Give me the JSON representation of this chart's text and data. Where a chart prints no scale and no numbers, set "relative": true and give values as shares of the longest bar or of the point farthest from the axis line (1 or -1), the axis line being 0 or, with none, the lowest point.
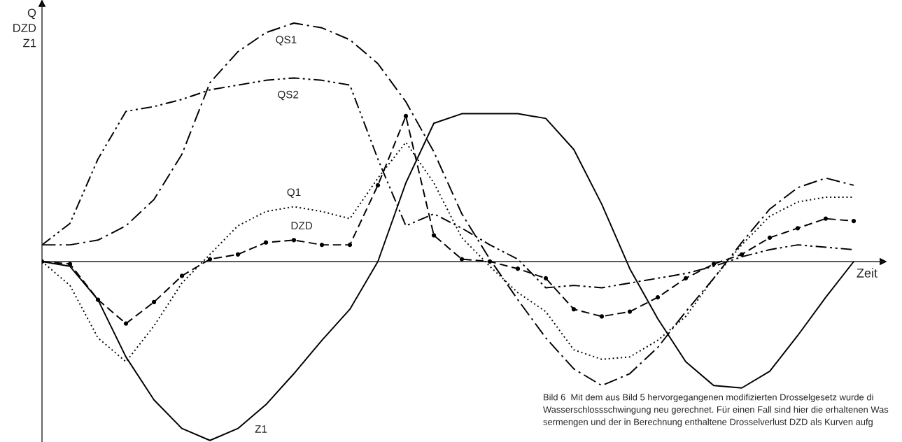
{
  "chart_data": {
    "type": "line",
    "relative": true,
    "ylabel": "Q\nDZD\nZ1",
    "xlabel": "Zeit",
    "categories": [
      null,
      null,
      null,
      null,
      null,
      null,
      null,
      null,
      null,
      null,
      null,
      null,
      null,
      null,
      null,
      null,
      null,
      null,
      null,
      null,
      null,
      null,
      null,
      null,
      null,
      null,
      null,
      null,
      null,
      null
    ],
    "series": [
      {
        "name": "QS1",
        "color": "#000000",
        "line_style": "dashdot",
        "values": [
          0.07,
          0.07,
          0.09,
          0.15,
          0.26,
          0.45,
          0.75,
          0.88,
          0.96,
          1.0,
          0.98,
          0.93,
          0.83,
          0.67,
          0.46,
          0.2,
          0.01,
          -0.16,
          -0.32,
          -0.45,
          -0.52,
          -0.47,
          -0.36,
          -0.21,
          -0.07,
          0.08,
          0.22,
          0.31,
          0.35,
          0.32
        ]
      },
      {
        "name": "QS2",
        "color": "#000000",
        "line_style": "dashdotdot",
        "values": [
          0.07,
          0.16,
          0.43,
          0.63,
          0.65,
          0.68,
          0.72,
          0.74,
          0.76,
          0.77,
          0.76,
          0.74,
          0.43,
          0.15,
          0.2,
          0.14,
          0.07,
          0.01,
          -0.11,
          -0.1,
          -0.11,
          -0.09,
          -0.07,
          -0.05,
          -0.02,
          0.02,
          0.05,
          0.07,
          0.06,
          0.05
        ]
      },
      {
        "name": "Q1",
        "color": "#000000",
        "line_style": "dotted",
        "values": [
          0.0,
          -0.1,
          -0.32,
          -0.42,
          -0.27,
          -0.09,
          0.03,
          0.15,
          0.21,
          0.23,
          0.21,
          0.18,
          0.35,
          0.5,
          0.33,
          0.1,
          -0.02,
          -0.13,
          -0.21,
          -0.37,
          -0.41,
          -0.4,
          -0.33,
          -0.23,
          -0.07,
          0.07,
          0.19,
          0.25,
          0.27,
          0.27
        ]
      },
      {
        "name": "DZD",
        "color": "#000000",
        "line_style": "dashed",
        "marker": "circle",
        "values": [
          0.0,
          -0.01,
          -0.16,
          -0.26,
          -0.17,
          -0.06,
          0.01,
          0.03,
          0.08,
          0.09,
          0.07,
          0.07,
          0.32,
          0.61,
          0.11,
          0.01,
          0.0,
          -0.03,
          -0.07,
          -0.2,
          -0.23,
          -0.21,
          -0.15,
          -0.07,
          -0.01,
          0.03,
          0.1,
          0.14,
          0.18,
          0.17
        ]
      },
      {
        "name": "Z1",
        "color": "#000000",
        "line_style": "solid",
        "values": [
          0.0,
          -0.02,
          -0.16,
          -0.4,
          -0.58,
          -0.7,
          -0.75,
          -0.7,
          -0.6,
          -0.47,
          -0.33,
          -0.2,
          0.0,
          0.33,
          0.58,
          0.62,
          0.62,
          0.62,
          0.6,
          0.47,
          0.24,
          -0.03,
          -0.24,
          -0.42,
          -0.52,
          -0.53,
          -0.46,
          -0.31,
          -0.15,
          0.0
        ]
      }
    ],
    "annotations": [
      "Bild 6  Mit dem aus Bild 5 hervorgegangenen modifizierten Drosselgesetz wurde di\nWasserschlossschwingung neu gerechnet. Für einen Fall sind hier die erhaltenen Was\nsermengen und der in Berechnung enthaltene Drosselverlust DZD als Kurven aufg"
    ]
  }
}
